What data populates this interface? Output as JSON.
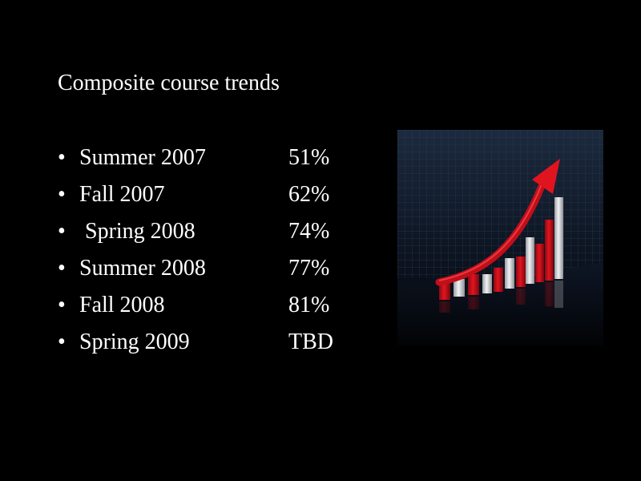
{
  "slide": {
    "title": "Composite course trends",
    "items": [
      {
        "bullet": "•",
        "term": "Summer 2007",
        "value": "51%"
      },
      {
        "bullet": "•",
        "term": "Fall 2007",
        "value": "62%"
      },
      {
        "bullet": "•",
        "term": " Spring 2008",
        "value": "74%"
      },
      {
        "bullet": "•",
        "term": "Summer 2008",
        "value": "77%"
      },
      {
        "bullet": "•",
        "term": "Fall 2008",
        "value": "81%"
      },
      {
        "bullet": "•",
        "term": "Spring 2009",
        "value": "TBD"
      }
    ]
  },
  "picture": {
    "icon": "rising-bar-chart-with-red-arrow-icon",
    "colors": {
      "bar_red": "#d0101c",
      "bar_white": "#e8e8ea",
      "arrow": "#e0141f",
      "grid": "#26374f"
    }
  }
}
